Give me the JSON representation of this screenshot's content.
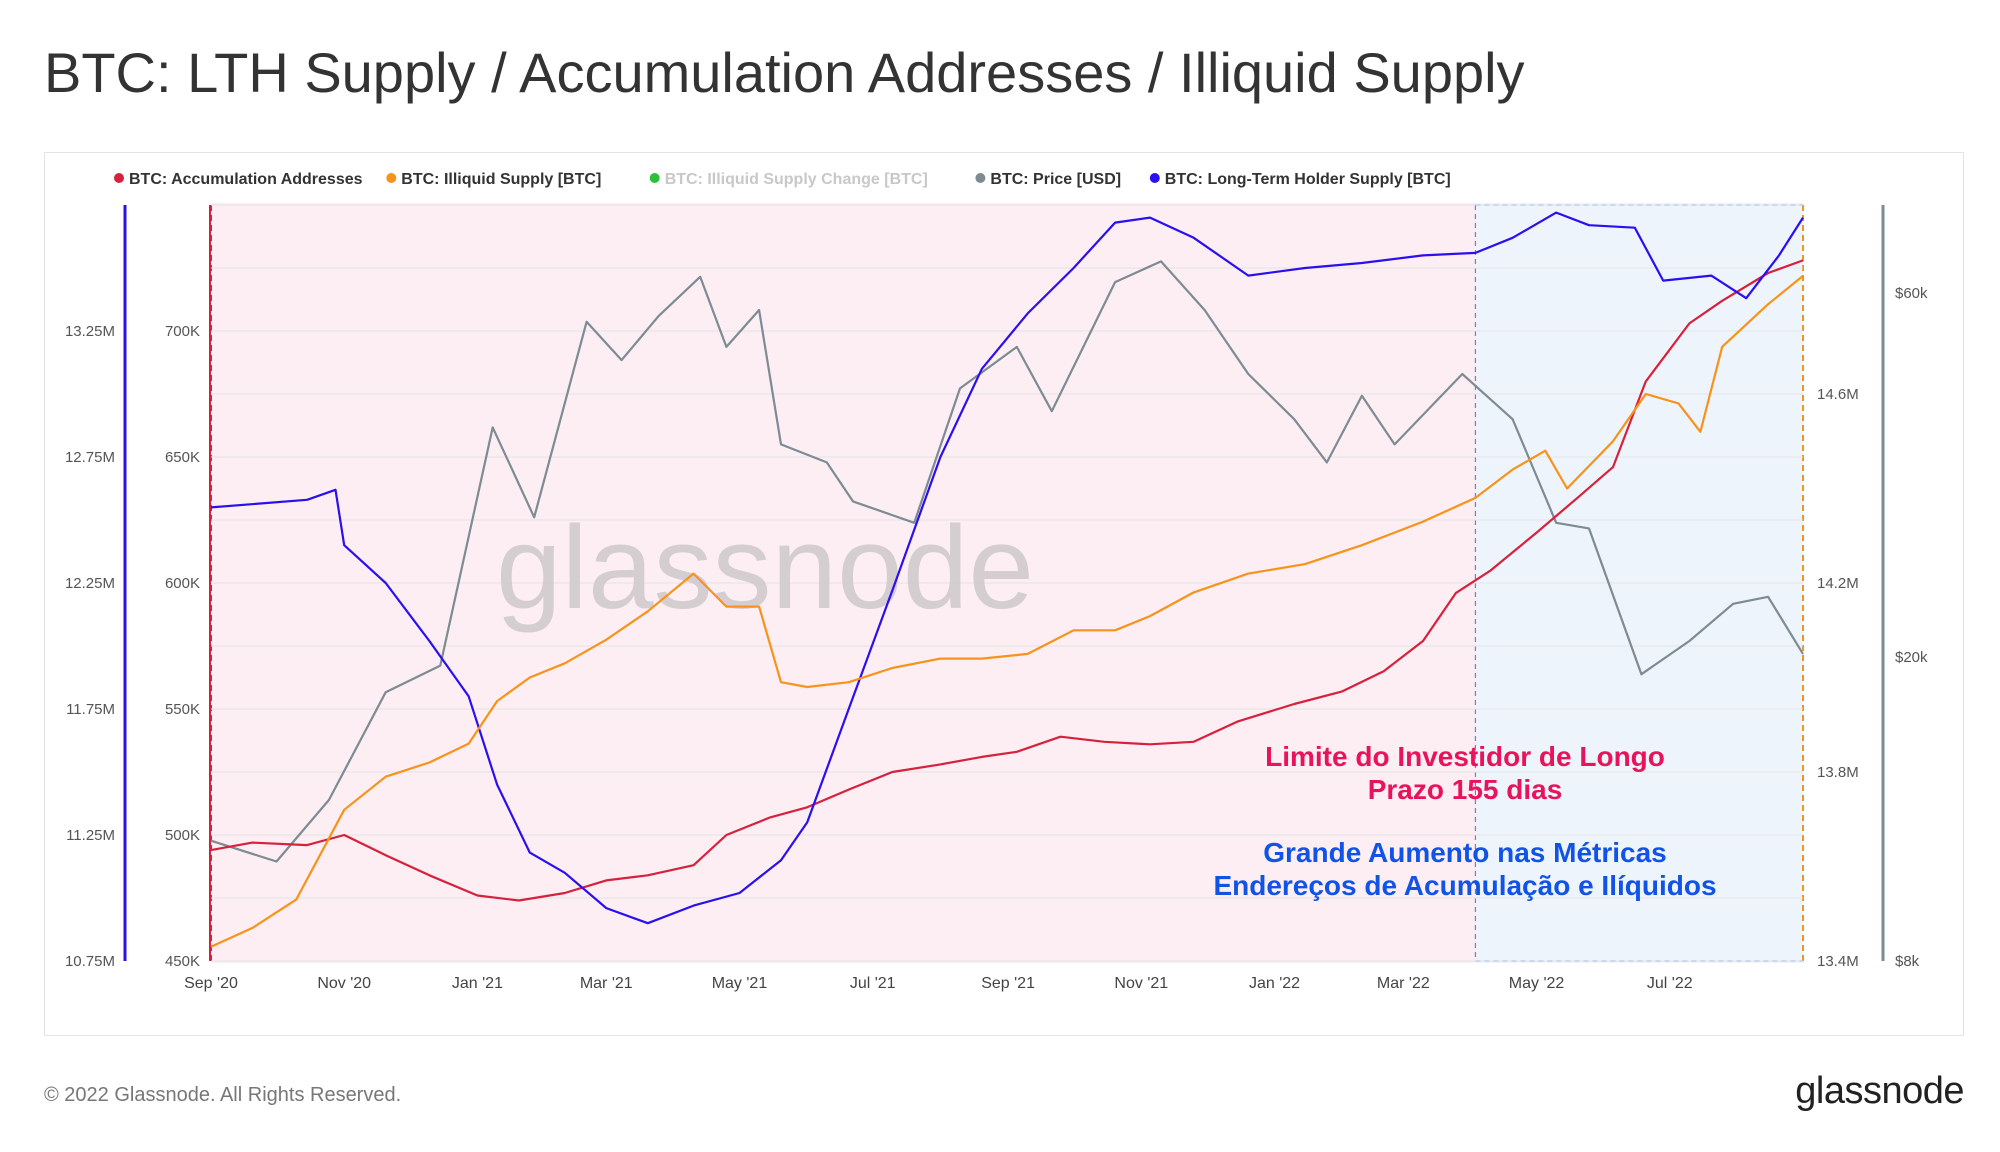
{
  "page": {
    "title": "BTC: LTH Supply / Accumulation Addresses / Illiquid Supply",
    "copyright": "© 2022 Glassnode. All Rights Reserved.",
    "logo": "glassnode",
    "watermark": "glassnode"
  },
  "chart_data": {
    "type": "line",
    "title": "BTC: LTH Supply / Accumulation Addresses / Illiquid Supply",
    "x_ticks": [
      "Sep '20",
      "Nov '20",
      "Jan '21",
      "Mar '21",
      "May '21",
      "Jul '21",
      "Sep '21",
      "Nov '21",
      "Jan '22",
      "Mar '22",
      "May '22",
      "Jul '22"
    ],
    "x_range": [
      "2020-09-01",
      "2022-08-31"
    ],
    "grid": true,
    "legend_position": "top-left",
    "legend": [
      {
        "name": "BTC: Accumulation Addresses",
        "color": "#d6213c",
        "muted": false
      },
      {
        "name": "BTC: Illiquid Supply [BTC]",
        "color": "#f7931a",
        "muted": false
      },
      {
        "name": "BTC: Illiquid Supply Change [BTC]",
        "color": "#2cbf3a",
        "muted": true
      },
      {
        "name": "BTC: Price [USD]",
        "color": "#7d8b93",
        "muted": false
      },
      {
        "name": "BTC: Long-Term Holder Supply [BTC]",
        "color": "#2a0ff0",
        "muted": false
      }
    ],
    "axes": {
      "lth_axis": {
        "ticks": [
          "13.25M",
          "12.75M",
          "12.25M",
          "11.75M",
          "11.25M",
          "10.75M"
        ],
        "range": [
          10750000,
          13750000
        ],
        "color": "#2a0ff0"
      },
      "accumulation_axis": {
        "ticks": [
          "700K",
          "650K",
          "600K",
          "550K",
          "500K",
          "450K"
        ],
        "range": [
          450000,
          750000
        ],
        "color": "#d6213c"
      },
      "illiquid_axis": {
        "ticks": [
          "14.6M",
          "14.2M",
          "13.8M",
          "13.4M"
        ],
        "range": [
          13400000,
          15000000
        ],
        "color": "#f7931a"
      },
      "price_axis": {
        "ticks": [
          "$60k",
          "$20k",
          "$8k"
        ],
        "scale": "log",
        "color": "#7d8b93"
      }
    },
    "regions": [
      {
        "label": "LTH 155-day limit region",
        "from": "2020-09-01",
        "to": "2022-04-03",
        "color": "#fdeef3"
      },
      {
        "label": "growth region",
        "from": "2022-04-03",
        "to": "2022-08-31",
        "color": "#eef4fc"
      }
    ],
    "series": [
      {
        "name": "BTC: Long-Term Holder Supply [BTC]",
        "axis": "lth_axis",
        "color": "#2a0ff0",
        "points": [
          [
            "2020-09-01",
            12.55
          ],
          [
            "2020-10-15",
            12.58
          ],
          [
            "2020-10-28",
            12.62
          ],
          [
            "2020-11-01",
            12.4
          ],
          [
            "2020-11-20",
            12.25
          ],
          [
            "2020-12-10",
            12.02
          ],
          [
            "2020-12-28",
            11.8
          ],
          [
            "2021-01-10",
            11.45
          ],
          [
            "2021-01-25",
            11.18
          ],
          [
            "2021-02-10",
            11.1
          ],
          [
            "2021-03-01",
            10.96
          ],
          [
            "2021-03-20",
            10.9
          ],
          [
            "2021-04-10",
            10.97
          ],
          [
            "2021-05-01",
            11.02
          ],
          [
            "2021-05-20",
            11.15
          ],
          [
            "2021-06-01",
            11.3
          ],
          [
            "2021-06-20",
            11.75
          ],
          [
            "2021-07-10",
            12.22
          ],
          [
            "2021-08-01",
            12.75
          ],
          [
            "2021-08-20",
            13.1
          ],
          [
            "2021-09-10",
            13.32
          ],
          [
            "2021-10-01",
            13.5
          ],
          [
            "2021-10-20",
            13.68
          ],
          [
            "2021-11-05",
            13.7
          ],
          [
            "2021-11-25",
            13.62
          ],
          [
            "2021-12-20",
            13.47
          ],
          [
            "2022-01-15",
            13.5
          ],
          [
            "2022-02-10",
            13.52
          ],
          [
            "2022-03-10",
            13.55
          ],
          [
            "2022-04-03",
            13.56
          ],
          [
            "2022-04-20",
            13.62
          ],
          [
            "2022-05-10",
            13.72
          ],
          [
            "2022-05-25",
            13.67
          ],
          [
            "2022-06-15",
            13.66
          ],
          [
            "2022-06-28",
            13.45
          ],
          [
            "2022-07-20",
            13.47
          ],
          [
            "2022-08-05",
            13.38
          ],
          [
            "2022-08-20",
            13.55
          ],
          [
            "2022-08-31",
            13.7
          ]
        ]
      },
      {
        "name": "BTC: Accumulation Addresses",
        "axis": "accumulation_axis",
        "color": "#d6213c",
        "points": [
          [
            "2020-09-01",
            494
          ],
          [
            "2020-09-20",
            497
          ],
          [
            "2020-10-15",
            496
          ],
          [
            "2020-11-01",
            500
          ],
          [
            "2020-11-20",
            492
          ],
          [
            "2020-12-10",
            484
          ],
          [
            "2021-01-01",
            476
          ],
          [
            "2021-01-20",
            474
          ],
          [
            "2021-02-10",
            477
          ],
          [
            "2021-03-01",
            482
          ],
          [
            "2021-03-20",
            484
          ],
          [
            "2021-04-10",
            488
          ],
          [
            "2021-04-25",
            500
          ],
          [
            "2021-05-15",
            507
          ],
          [
            "2021-06-01",
            511
          ],
          [
            "2021-06-20",
            518
          ],
          [
            "2021-07-10",
            525
          ],
          [
            "2021-08-01",
            528
          ],
          [
            "2021-08-20",
            531
          ],
          [
            "2021-09-05",
            533
          ],
          [
            "2021-09-25",
            539
          ],
          [
            "2021-10-15",
            537
          ],
          [
            "2021-11-05",
            536
          ],
          [
            "2021-11-25",
            537
          ],
          [
            "2021-12-15",
            545
          ],
          [
            "2022-01-10",
            552
          ],
          [
            "2022-02-01",
            557
          ],
          [
            "2022-02-20",
            565
          ],
          [
            "2022-03-10",
            577
          ],
          [
            "2022-03-25",
            596
          ],
          [
            "2022-04-10",
            605
          ],
          [
            "2022-05-01",
            620
          ],
          [
            "2022-05-20",
            634
          ],
          [
            "2022-06-05",
            646
          ],
          [
            "2022-06-20",
            680
          ],
          [
            "2022-07-10",
            703
          ],
          [
            "2022-07-25",
            712
          ],
          [
            "2022-08-15",
            723
          ],
          [
            "2022-08-31",
            728
          ]
        ]
      },
      {
        "name": "BTC: Illiquid Supply [BTC]",
        "axis": "illiquid_axis",
        "color": "#f7931a",
        "points": [
          [
            "2020-09-01",
            13.43
          ],
          [
            "2020-09-20",
            13.47
          ],
          [
            "2020-10-10",
            13.53
          ],
          [
            "2020-11-01",
            13.72
          ],
          [
            "2020-11-20",
            13.79
          ],
          [
            "2020-12-10",
            13.82
          ],
          [
            "2020-12-28",
            13.86
          ],
          [
            "2021-01-10",
            13.95
          ],
          [
            "2021-01-25",
            14.0
          ],
          [
            "2021-02-10",
            14.03
          ],
          [
            "2021-03-01",
            14.08
          ],
          [
            "2021-03-20",
            14.14
          ],
          [
            "2021-04-10",
            14.22
          ],
          [
            "2021-04-25",
            14.15
          ],
          [
            "2021-05-10",
            14.15
          ],
          [
            "2021-05-20",
            13.99
          ],
          [
            "2021-06-01",
            13.98
          ],
          [
            "2021-06-20",
            13.99
          ],
          [
            "2021-07-10",
            14.02
          ],
          [
            "2021-08-01",
            14.04
          ],
          [
            "2021-08-20",
            14.04
          ],
          [
            "2021-09-10",
            14.05
          ],
          [
            "2021-10-01",
            14.1
          ],
          [
            "2021-10-20",
            14.1
          ],
          [
            "2021-11-05",
            14.13
          ],
          [
            "2021-11-25",
            14.18
          ],
          [
            "2021-12-20",
            14.22
          ],
          [
            "2022-01-15",
            14.24
          ],
          [
            "2022-02-10",
            14.28
          ],
          [
            "2022-03-10",
            14.33
          ],
          [
            "2022-04-03",
            14.38
          ],
          [
            "2022-04-20",
            14.44
          ],
          [
            "2022-05-05",
            14.48
          ],
          [
            "2022-05-15",
            14.4
          ],
          [
            "2022-06-05",
            14.5
          ],
          [
            "2022-06-20",
            14.6
          ],
          [
            "2022-07-05",
            14.58
          ],
          [
            "2022-07-15",
            14.52
          ],
          [
            "2022-07-25",
            14.7
          ],
          [
            "2022-08-15",
            14.79
          ],
          [
            "2022-08-31",
            14.85
          ]
        ]
      },
      {
        "name": "BTC: Price [USD]",
        "axis": "price_axis",
        "color": "#7d8b93",
        "points": [
          [
            "2020-09-01",
            11500
          ],
          [
            "2020-10-01",
            10800
          ],
          [
            "2020-10-25",
            13000
          ],
          [
            "2020-11-20",
            18000
          ],
          [
            "2020-12-15",
            19500
          ],
          [
            "2021-01-08",
            40000
          ],
          [
            "2021-01-27",
            30500
          ],
          [
            "2021-02-20",
            55000
          ],
          [
            "2021-03-08",
            49000
          ],
          [
            "2021-03-25",
            56000
          ],
          [
            "2021-04-13",
            63000
          ],
          [
            "2021-04-25",
            51000
          ],
          [
            "2021-05-10",
            57000
          ],
          [
            "2021-05-20",
            38000
          ],
          [
            "2021-06-10",
            36000
          ],
          [
            "2021-06-22",
            32000
          ],
          [
            "2021-07-20",
            30000
          ],
          [
            "2021-08-10",
            45000
          ],
          [
            "2021-09-05",
            51000
          ],
          [
            "2021-09-21",
            42000
          ],
          [
            "2021-10-20",
            62000
          ],
          [
            "2021-11-10",
            66000
          ],
          [
            "2021-11-30",
            57000
          ],
          [
            "2021-12-20",
            47000
          ],
          [
            "2022-01-10",
            41000
          ],
          [
            "2022-01-25",
            36000
          ],
          [
            "2022-02-10",
            44000
          ],
          [
            "2022-02-25",
            38000
          ],
          [
            "2022-03-28",
            47000
          ],
          [
            "2022-04-20",
            41000
          ],
          [
            "2022-05-10",
            30000
          ],
          [
            "2022-05-25",
            29500
          ],
          [
            "2022-06-18",
            19000
          ],
          [
            "2022-07-10",
            21000
          ],
          [
            "2022-07-30",
            23500
          ],
          [
            "2022-08-15",
            24000
          ],
          [
            "2022-08-31",
            20200
          ]
        ]
      }
    ],
    "annotations": [
      {
        "lines": [
          "Limite do Investidor de Longo",
          "Prazo 155 dias"
        ],
        "color": "#e8135a"
      },
      {
        "lines": [
          "Grande Aumento nas Métricas",
          "Endereços de Acumulação e Ilíquidos"
        ],
        "color": "#1153e6"
      }
    ]
  }
}
